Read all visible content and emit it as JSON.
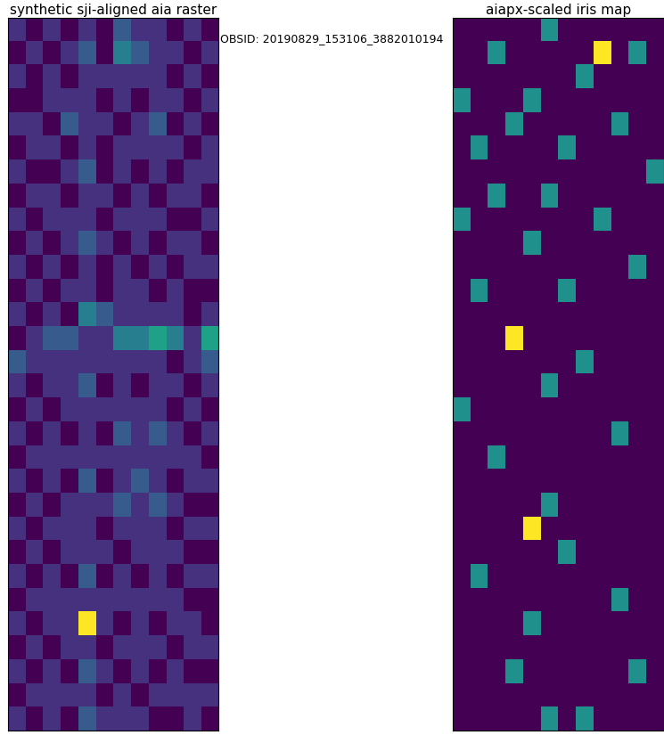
{
  "title": "OBSID: 20190829_153106_3882010194",
  "chart_data": [
    {
      "type": "heatmap",
      "title": "synthetic sji-aligned aia raster",
      "tick_labels": false,
      "cells": [
        [
          3,
          2,
          3,
          2,
          3,
          2,
          4,
          3,
          3,
          2,
          3,
          2
        ],
        [
          2,
          3,
          2,
          3,
          4,
          2,
          5,
          4,
          3,
          3,
          2,
          3
        ],
        [
          3,
          2,
          3,
          2,
          3,
          3,
          3,
          3,
          3,
          2,
          3,
          2
        ],
        [
          2,
          2,
          3,
          3,
          3,
          2,
          3,
          2,
          3,
          3,
          2,
          3
        ],
        [
          3,
          3,
          2,
          4,
          3,
          3,
          2,
          3,
          4,
          2,
          3,
          2
        ],
        [
          2,
          3,
          3,
          2,
          3,
          2,
          3,
          3,
          3,
          3,
          2,
          3
        ],
        [
          3,
          2,
          2,
          3,
          4,
          2,
          3,
          2,
          3,
          2,
          3,
          3
        ],
        [
          2,
          3,
          3,
          2,
          3,
          3,
          2,
          3,
          2,
          3,
          3,
          2
        ],
        [
          3,
          2,
          3,
          3,
          3,
          2,
          3,
          3,
          3,
          2,
          2,
          3
        ],
        [
          2,
          3,
          2,
          3,
          4,
          3,
          2,
          3,
          2,
          3,
          3,
          2
        ],
        [
          3,
          2,
          3,
          2,
          3,
          2,
          3,
          2,
          3,
          2,
          3,
          3
        ],
        [
          2,
          3,
          2,
          3,
          3,
          2,
          3,
          3,
          2,
          3,
          2,
          2
        ],
        [
          3,
          2,
          3,
          2,
          5,
          4,
          3,
          3,
          3,
          3,
          2,
          3
        ],
        [
          2,
          3,
          4,
          4,
          3,
          3,
          5,
          5,
          6,
          5,
          3,
          6
        ],
        [
          4,
          3,
          3,
          3,
          3,
          3,
          3,
          3,
          3,
          2,
          3,
          4
        ],
        [
          3,
          2,
          3,
          3,
          4,
          2,
          3,
          2,
          3,
          3,
          2,
          3
        ],
        [
          2,
          3,
          2,
          3,
          3,
          3,
          3,
          3,
          3,
          2,
          3,
          2
        ],
        [
          3,
          2,
          3,
          2,
          3,
          2,
          4,
          3,
          4,
          3,
          2,
          3
        ],
        [
          2,
          3,
          3,
          3,
          3,
          3,
          3,
          3,
          3,
          3,
          3,
          2
        ],
        [
          3,
          2,
          3,
          2,
          4,
          2,
          3,
          4,
          3,
          2,
          3,
          3
        ],
        [
          2,
          3,
          2,
          3,
          3,
          3,
          4,
          3,
          4,
          3,
          2,
          2
        ],
        [
          3,
          2,
          3,
          3,
          3,
          2,
          3,
          3,
          3,
          2,
          3,
          3
        ],
        [
          2,
          3,
          2,
          3,
          3,
          3,
          2,
          3,
          3,
          3,
          2,
          2
        ],
        [
          3,
          2,
          3,
          2,
          4,
          2,
          3,
          2,
          3,
          2,
          3,
          3
        ],
        [
          2,
          3,
          3,
          3,
          3,
          3,
          3,
          3,
          3,
          3,
          2,
          2
        ],
        [
          3,
          2,
          3,
          3,
          9,
          3,
          2,
          3,
          2,
          3,
          3,
          2
        ],
        [
          2,
          3,
          2,
          3,
          3,
          2,
          3,
          3,
          3,
          2,
          3,
          3
        ],
        [
          3,
          2,
          3,
          2,
          4,
          3,
          2,
          3,
          2,
          3,
          2,
          2
        ],
        [
          2,
          3,
          3,
          3,
          3,
          2,
          3,
          2,
          3,
          3,
          3,
          3
        ],
        [
          3,
          2,
          3,
          2,
          4,
          3,
          3,
          3,
          2,
          2,
          3,
          2
        ]
      ]
    },
    {
      "type": "heatmap",
      "title": "aiapx-scaled iris map",
      "tick_labels": false,
      "cells": [
        [
          0,
          0,
          0,
          0,
          0,
          1,
          0,
          0,
          0,
          0,
          0,
          0
        ],
        [
          0,
          0,
          1,
          0,
          0,
          0,
          0,
          0,
          2,
          0,
          1,
          0
        ],
        [
          0,
          0,
          0,
          0,
          0,
          0,
          0,
          1,
          0,
          0,
          0,
          0
        ],
        [
          1,
          0,
          0,
          0,
          1,
          0,
          0,
          0,
          0,
          0,
          0,
          0
        ],
        [
          0,
          0,
          0,
          1,
          0,
          0,
          0,
          0,
          0,
          1,
          0,
          0
        ],
        [
          0,
          1,
          0,
          0,
          0,
          0,
          1,
          0,
          0,
          0,
          0,
          0
        ],
        [
          0,
          0,
          0,
          0,
          0,
          0,
          0,
          0,
          0,
          0,
          0,
          1
        ],
        [
          0,
          0,
          1,
          0,
          0,
          1,
          0,
          0,
          0,
          0,
          0,
          0
        ],
        [
          1,
          0,
          0,
          0,
          0,
          0,
          0,
          0,
          1,
          0,
          0,
          0
        ],
        [
          0,
          0,
          0,
          0,
          1,
          0,
          0,
          0,
          0,
          0,
          0,
          0
        ],
        [
          0,
          0,
          0,
          0,
          0,
          0,
          0,
          0,
          0,
          0,
          1,
          0
        ],
        [
          0,
          1,
          0,
          0,
          0,
          0,
          1,
          0,
          0,
          0,
          0,
          0
        ],
        [
          0,
          0,
          0,
          0,
          0,
          0,
          0,
          0,
          0,
          0,
          0,
          0
        ],
        [
          0,
          0,
          0,
          2,
          0,
          0,
          0,
          0,
          0,
          0,
          0,
          0
        ],
        [
          0,
          0,
          0,
          0,
          0,
          0,
          0,
          1,
          0,
          0,
          0,
          0
        ],
        [
          0,
          0,
          0,
          0,
          0,
          1,
          0,
          0,
          0,
          0,
          0,
          0
        ],
        [
          1,
          0,
          0,
          0,
          0,
          0,
          0,
          0,
          0,
          0,
          0,
          0
        ],
        [
          0,
          0,
          0,
          0,
          0,
          0,
          0,
          0,
          0,
          1,
          0,
          0
        ],
        [
          0,
          0,
          1,
          0,
          0,
          0,
          0,
          0,
          0,
          0,
          0,
          0
        ],
        [
          0,
          0,
          0,
          0,
          0,
          0,
          0,
          0,
          0,
          0,
          0,
          0
        ],
        [
          0,
          0,
          0,
          0,
          0,
          1,
          0,
          0,
          0,
          0,
          0,
          0
        ],
        [
          0,
          0,
          0,
          0,
          2,
          0,
          0,
          0,
          0,
          0,
          0,
          0
        ],
        [
          0,
          0,
          0,
          0,
          0,
          0,
          1,
          0,
          0,
          0,
          0,
          0
        ],
        [
          0,
          1,
          0,
          0,
          0,
          0,
          0,
          0,
          0,
          0,
          0,
          0
        ],
        [
          0,
          0,
          0,
          0,
          0,
          0,
          0,
          0,
          0,
          1,
          0,
          0
        ],
        [
          0,
          0,
          0,
          0,
          1,
          0,
          0,
          0,
          0,
          0,
          0,
          0
        ],
        [
          0,
          0,
          0,
          0,
          0,
          0,
          0,
          0,
          0,
          0,
          0,
          0
        ],
        [
          0,
          0,
          0,
          1,
          0,
          0,
          0,
          0,
          0,
          0,
          1,
          0
        ],
        [
          0,
          0,
          0,
          0,
          0,
          0,
          0,
          0,
          0,
          0,
          0,
          0
        ],
        [
          0,
          0,
          0,
          0,
          0,
          1,
          0,
          1,
          0,
          0,
          0,
          0
        ]
      ]
    }
  ]
}
